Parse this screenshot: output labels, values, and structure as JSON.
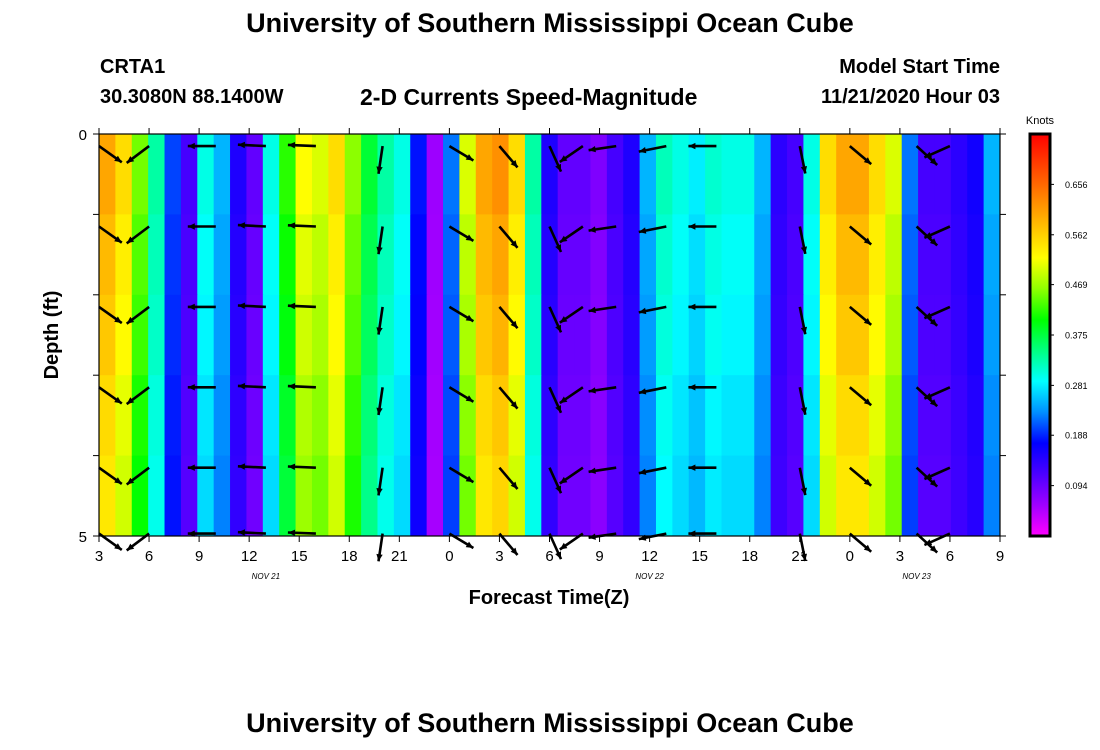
{
  "header": {
    "title": "University of Southern Mississippi Ocean Cube",
    "station_id": "CRTA1",
    "station_coords": "30.3080N 88.1400W",
    "plot_title": "2-D Currents Speed-Magnitude",
    "model_start_label": "Model Start Time",
    "model_start_value": "11/21/2020 Hour 03"
  },
  "footer": {
    "title": "University of Southern Mississippi Ocean Cube"
  },
  "colors": {
    "colormap": [
      "#ff00ff",
      "#a000ff",
      "#4b00ff",
      "#0000ff",
      "#0090ff",
      "#00ffff",
      "#00ff80",
      "#00ff00",
      "#90ff00",
      "#ffff00",
      "#ffc000",
      "#ff8000",
      "#ff4000",
      "#ff0000"
    ],
    "arrow": "#000000"
  },
  "chart_data": {
    "type": "heatmap",
    "title": "2-D Currents Speed-Magnitude",
    "xlabel": "Forecast Time(Z)",
    "ylabel": "Depth (ft)",
    "x_range_hours": [
      0,
      54
    ],
    "y_range_ft": [
      0,
      5
    ],
    "y_ticks": [
      0,
      1,
      2,
      3,
      4,
      5
    ],
    "y_tick_labels": [
      "0",
      "",
      "",
      "",
      "",
      "5"
    ],
    "x_tick_labels": [
      "3",
      "6",
      "9",
      "12",
      "15",
      "18",
      "21",
      "0",
      "3",
      "6",
      "9",
      "12",
      "15",
      "18",
      "21",
      "0",
      "3",
      "6",
      "9"
    ],
    "date_labels": [
      {
        "text": "NOV 21",
        "hour": 10
      },
      {
        "text": "NOV 22",
        "hour": 33
      },
      {
        "text": "NOV 23",
        "hour": 49
      }
    ],
    "colorbar": {
      "unit": "Knots",
      "range": [
        0.0,
        0.75
      ],
      "ticks": [
        0.094,
        0.188,
        0.281,
        0.375,
        0.469,
        0.562,
        0.656
      ]
    },
    "depth_layers": [
      0,
      1,
      2,
      3,
      4,
      5
    ],
    "surface_speed": [
      0.6,
      0.55,
      0.45,
      0.33,
      0.2,
      0.12,
      0.3,
      0.25,
      0.15,
      0.1,
      0.3,
      0.42,
      0.52,
      0.5,
      0.55,
      0.46,
      0.38,
      0.33,
      0.3,
      0.18,
      0.06,
      0.22,
      0.5,
      0.6,
      0.62,
      0.55,
      0.33,
      0.15,
      0.1,
      0.1,
      0.08,
      0.12,
      0.15,
      0.25,
      0.32,
      0.3,
      0.28,
      0.31,
      0.3,
      0.3,
      0.25,
      0.14,
      0.12,
      0.3,
      0.55,
      0.6,
      0.6,
      0.55,
      0.5,
      0.22,
      0.12,
      0.12,
      0.14,
      0.16,
      0.25
    ],
    "vectors": [
      {
        "hour": 0,
        "u": 0.7,
        "v": -0.5
      },
      {
        "hour": 3,
        "u": -0.6,
        "v": -0.45
      },
      {
        "hour": 7,
        "u": -1.0,
        "v": 0.0
      },
      {
        "hour": 10,
        "u": -1.0,
        "v": 0.05
      },
      {
        "hour": 13,
        "u": -1.0,
        "v": 0.04
      },
      {
        "hour": 17,
        "u": -0.15,
        "v": -1.0
      },
      {
        "hour": 21,
        "u": 0.75,
        "v": -0.45
      },
      {
        "hour": 24,
        "u": 0.55,
        "v": -0.65
      },
      {
        "hour": 27,
        "u": 0.45,
        "v": -1.0
      },
      {
        "hour": 29,
        "u": -0.8,
        "v": -0.55
      },
      {
        "hour": 31,
        "u": -1.0,
        "v": -0.15
      },
      {
        "hour": 34,
        "u": -1.0,
        "v": -0.2
      },
      {
        "hour": 37,
        "u": -1.0,
        "v": 0.0
      },
      {
        "hour": 42,
        "u": 0.2,
        "v": -1.0
      },
      {
        "hour": 45,
        "u": 0.65,
        "v": -0.55
      },
      {
        "hour": 49,
        "u": 0.6,
        "v": -0.55
      },
      {
        "hour": 51,
        "u": -0.9,
        "v": -0.4
      }
    ]
  }
}
